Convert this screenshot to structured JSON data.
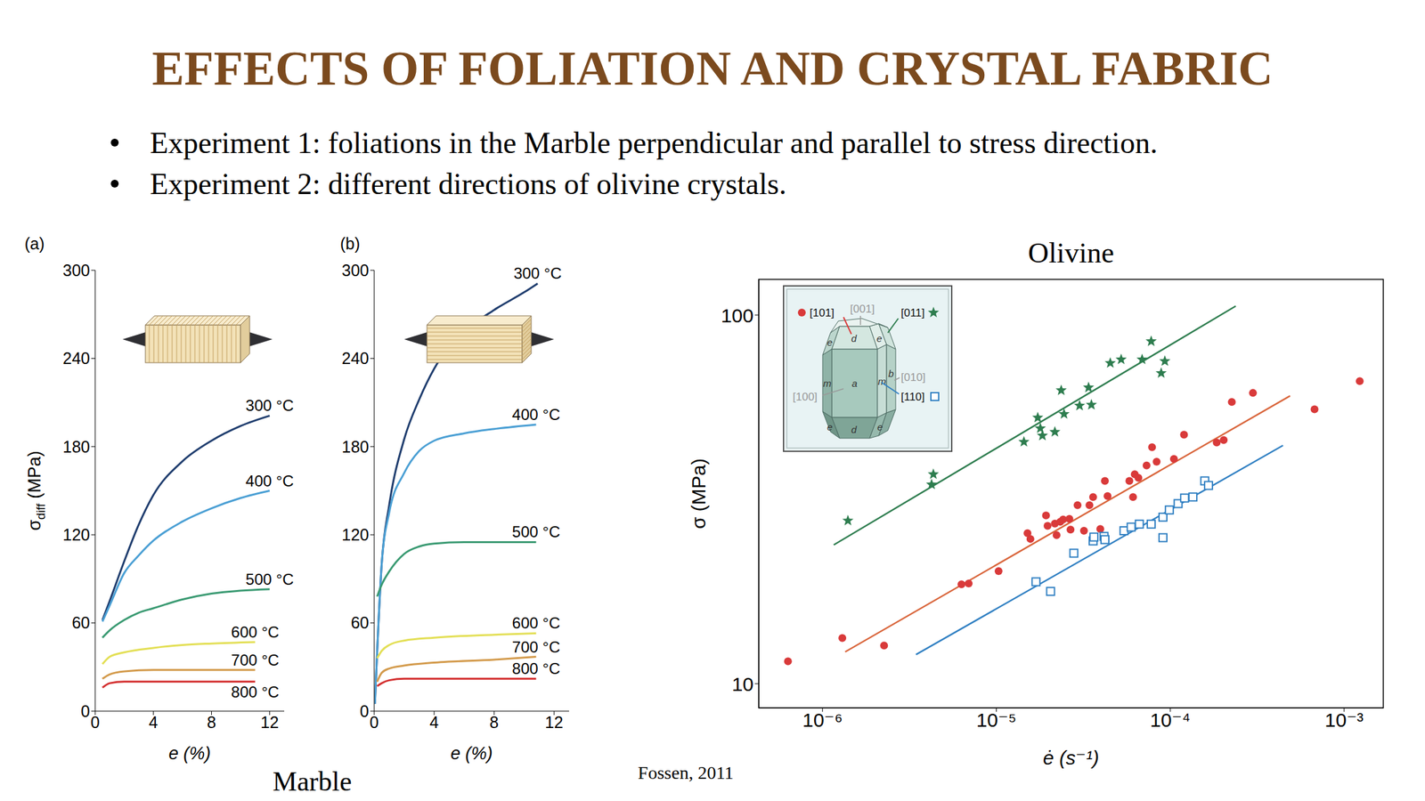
{
  "title": "EFFECTS OF FOLIATION AND CRYSTAL FABRIC",
  "bullets": [
    "Experiment 1: foliations in the Marble perpendicular and parallel to stress direction.",
    "Experiment 2: different directions of olivine crystals."
  ],
  "caption": "Marble",
  "source": "Fossen, 2011",
  "chart_data": [
    {
      "type": "line",
      "panel_label": "(a)",
      "x_label": "e (%)",
      "y_label": [
        "σ",
        "diff",
        " (MPa)"
      ],
      "xlim": [
        0,
        13
      ],
      "xticks": [
        0,
        4,
        8,
        12
      ],
      "ylim": [
        0,
        300
      ],
      "yticks": [
        0,
        60,
        120,
        180,
        240,
        300
      ],
      "series": [
        {
          "name": "300 °C",
          "color": "#1f3d6e",
          "x": [
            0.5,
            1,
            2,
            3,
            4,
            6,
            8,
            10,
            12
          ],
          "values": [
            62,
            75,
            102,
            127,
            147,
            170,
            184,
            194,
            201
          ]
        },
        {
          "name": "400 °C",
          "color": "#4a9fd4",
          "x": [
            0.5,
            1,
            2,
            3,
            4,
            6,
            8,
            10,
            12
          ],
          "values": [
            61,
            72,
            94,
            106,
            116,
            129,
            138,
            145,
            150
          ]
        },
        {
          "name": "500 °C",
          "color": "#3a9a72",
          "x": [
            0.5,
            1,
            2,
            3,
            4,
            6,
            8,
            10,
            12
          ],
          "values": [
            50,
            55,
            62,
            67,
            70,
            76,
            80,
            82,
            83
          ]
        },
        {
          "name": "600 °C",
          "color": "#e3df55",
          "x": [
            0.5,
            1,
            2,
            4,
            6,
            8,
            11
          ],
          "values": [
            32,
            37,
            40,
            43,
            45,
            46,
            47
          ]
        },
        {
          "name": "700 °C",
          "color": "#d39a4b",
          "x": [
            0.5,
            1,
            2,
            4,
            8,
            11
          ],
          "values": [
            22,
            25,
            27,
            28,
            28,
            28
          ]
        },
        {
          "name": "800 °C",
          "color": "#d32f2f",
          "x": [
            0.5,
            1,
            2,
            4,
            8,
            11
          ],
          "values": [
            16,
            19,
            20,
            20,
            20,
            20
          ]
        }
      ]
    },
    {
      "type": "line",
      "panel_label": "(b)",
      "x_label": "e (%)",
      "xlim": [
        0,
        13
      ],
      "xticks": [
        0,
        4,
        8,
        12
      ],
      "ylim": [
        0,
        300
      ],
      "yticks": [
        0,
        60,
        120,
        180,
        240,
        300
      ],
      "series": [
        {
          "name": "300 °C",
          "color": "#1f3d6e",
          "x": [
            0.05,
            0.5,
            1,
            2,
            3,
            4,
            6,
            8,
            10,
            10.9
          ],
          "values": [
            5,
            100,
            140,
            185,
            212,
            233,
            258,
            273,
            285,
            291
          ]
        },
        {
          "name": "400 °C",
          "color": "#4a9fd4",
          "x": [
            0.05,
            0.5,
            1,
            2,
            3,
            4,
            6,
            8,
            10.8
          ],
          "values": [
            5,
            100,
            135,
            162,
            177,
            184,
            189,
            192,
            195
          ]
        },
        {
          "name": "500 °C",
          "color": "#3a9a72",
          "x": [
            0.2,
            0.5,
            1,
            2,
            3,
            4,
            6,
            8,
            10.8
          ],
          "values": [
            78,
            86,
            95,
            107,
            112,
            114,
            115,
            115,
            115
          ]
        },
        {
          "name": "600 °C",
          "color": "#e3df55",
          "x": [
            0.2,
            0.5,
            1,
            2,
            4,
            8,
            10.8
          ],
          "values": [
            36,
            41,
            45,
            48,
            50,
            52,
            53
          ]
        },
        {
          "name": "700 °C",
          "color": "#d39a4b",
          "x": [
            0.2,
            0.5,
            1,
            2,
            4,
            8,
            10.8
          ],
          "values": [
            20,
            26,
            29,
            31,
            33,
            35,
            37
          ]
        },
        {
          "name": "800 °C",
          "color": "#d32f2f",
          "x": [
            0.2,
            0.5,
            1,
            2,
            4,
            10.8
          ],
          "values": [
            17,
            19,
            21,
            22,
            22,
            22
          ]
        }
      ]
    },
    {
      "type": "scatter",
      "title": "Olivine",
      "x_label": "ė (s⁻¹)",
      "y_label": "σ (MPa)",
      "log": true,
      "xlim": [
        4.3e-07,
        0.00168
      ],
      "xticks": [
        {
          "value": 1e-06,
          "label": "10⁻⁶"
        },
        {
          "value": 1e-05,
          "label": "10⁻⁵"
        },
        {
          "value": 0.0001,
          "label": "10⁻⁴"
        },
        {
          "value": 0.001,
          "label": "10⁻³"
        }
      ],
      "ylim": [
        8.6,
        125
      ],
      "yticks": [
        10,
        100
      ],
      "series": [
        {
          "name": "[011]",
          "color": "#2e7d4f",
          "marker": "star",
          "x": [
            1.4e-06,
            4.34e-06,
            4.24e-06,
            1.44e-05,
            1.73e-05,
            1.79e-05,
            1.84e-05,
            2.17e-05,
            2.36e-05,
            2.45e-05,
            3.01e-05,
            3.39e-05,
            3.52e-05,
            4.52e-05,
            5.22e-05,
            6.89e-05,
            7.77e-05,
            8.87e-05,
            9.31e-05
          ],
          "values": [
            27.7,
            37.0,
            34.7,
            45.3,
            52.7,
            49.3,
            47.1,
            48.2,
            62.5,
            53.9,
            56.8,
            63.6,
            57.1,
            74.1,
            75.8,
            75.8,
            84.9,
            69.6,
            75.0
          ],
          "fit": {
            "x": [
              1.16e-06,
              0.000238
            ],
            "values": [
              23.8,
              105.8
            ],
            "color": "#2e7d4f"
          }
        },
        {
          "name": "[101]",
          "color": "#d93a3a",
          "marker": "circle",
          "x": [
            6.33e-07,
            1.3e-06,
            2.26e-06,
            6.3e-06,
            6.93e-06,
            1.03e-05,
            1.51e-05,
            1.57e-05,
            1.93e-05,
            1.97e-05,
            2.17e-05,
            2.22e-05,
            2.33e-05,
            2.42e-05,
            2.63e-05,
            2.67e-05,
            2.93e-05,
            3.19e-05,
            3.43e-05,
            3.6e-05,
            3.96e-05,
            4.21e-05,
            4.36e-05,
            5.82e-05,
            6.11e-05,
            6.25e-05,
            6.56e-05,
            7.31e-05,
            7.86e-05,
            8.35e-05,
            0.000105,
            0.00012,
            0.000185,
            0.000203,
            0.000226,
            0.000299,
            0.000676,
            0.00123
          ],
          "values": [
            11.5,
            13.3,
            12.7,
            18.6,
            18.7,
            20.2,
            25.6,
            24.7,
            28.6,
            26.8,
            27.2,
            25.3,
            27.5,
            27.9,
            28.0,
            26.2,
            30.5,
            26.0,
            30.5,
            32.1,
            26.3,
            35.5,
            32.3,
            35.5,
            32.1,
            37.0,
            36.2,
            39.1,
            43.8,
            40.0,
            40.7,
            47.4,
            45.1,
            45.8,
            58.1,
            61.5,
            55.5,
            66.2
          ],
          "fit": {
            "x": [
              1.35e-06,
              0.000489
            ],
            "values": [
              12.2,
              60.4
            ],
            "color": "#d9653b"
          }
        },
        {
          "name": "[110]",
          "color": "#2f7fc2",
          "marker": "square",
          "x": [
            1.69e-05,
            2.05e-05,
            2.79e-05,
            3.6e-05,
            3.64e-05,
            4.16e-05,
            4.21e-05,
            5.42e-05,
            5.96e-05,
            6.64e-05,
            7.77e-05,
            9.08e-05,
            9.08e-05,
            9.88e-05,
            0.000111,
            0.000121,
            0.000135,
            0.000158,
            0.000166
          ],
          "values": [
            18.9,
            17.8,
            22.6,
            24.4,
            25.0,
            25.1,
            24.6,
            26.0,
            26.6,
            27.1,
            27.1,
            28.3,
            24.9,
            29.6,
            30.8,
            31.9,
            32.1,
            35.5,
            34.5
          ],
          "fit": {
            "x": [
              3.45e-06,
              0.000445
            ],
            "values": [
              12.0,
              44.3
            ],
            "color": "#2f7fc2"
          }
        }
      ],
      "inset": {
        "directions": [
          "[001]",
          "[010]",
          "[100]"
        ],
        "faces": [
          "d",
          "e",
          "e",
          "m",
          "a",
          "m",
          "b",
          "d",
          "e",
          "e"
        ]
      }
    }
  ]
}
